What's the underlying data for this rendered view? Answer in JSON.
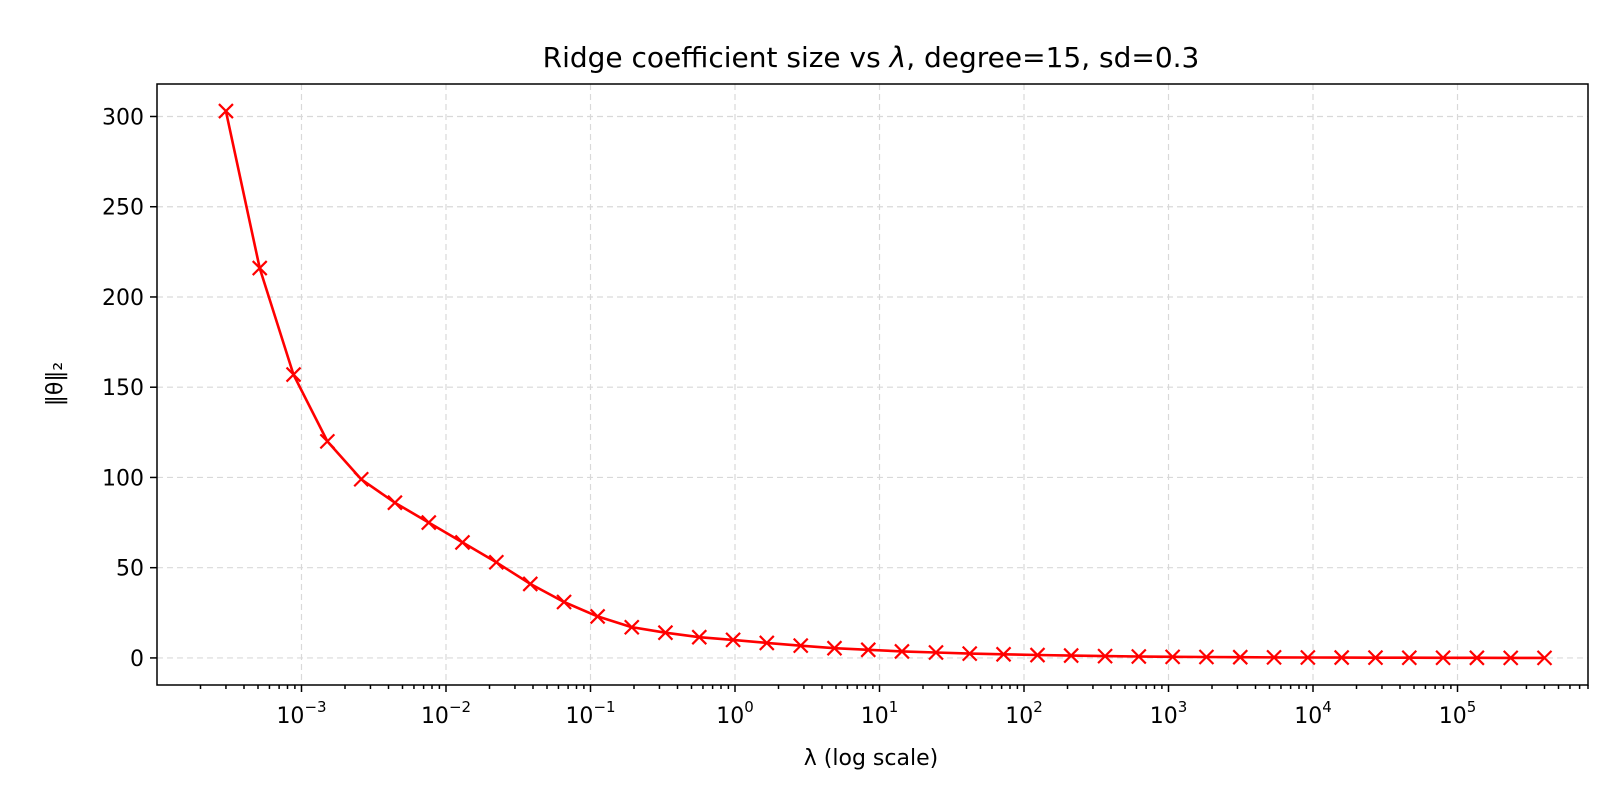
{
  "chart_data": {
    "type": "line",
    "title": "Ridge coefficient size vs λ, degree=15, sd=0.3",
    "title_parts": [
      "Ridge coefficient size vs ",
      "λ",
      ", degree=15, sd=0.3"
    ],
    "xlabel": "λ (log scale)",
    "ylabel": "‖θ‖₂",
    "xscale": "log",
    "xlim": [
      0.0001,
      800000
    ],
    "ylim": [
      -15,
      318
    ],
    "grid": true,
    "line_color": "#ff0000",
    "marker": "x",
    "x_ticks": [
      {
        "value": 0.001,
        "base": "10",
        "exp": "−3"
      },
      {
        "value": 0.01,
        "base": "10",
        "exp": "−2"
      },
      {
        "value": 0.1,
        "base": "10",
        "exp": "−1"
      },
      {
        "value": 1,
        "base": "10",
        "exp": "0"
      },
      {
        "value": 10,
        "base": "10",
        "exp": "1"
      },
      {
        "value": 100,
        "base": "10",
        "exp": "2"
      },
      {
        "value": 1000,
        "base": "10",
        "exp": "3"
      },
      {
        "value": 10000,
        "base": "10",
        "exp": "4"
      },
      {
        "value": 100000,
        "base": "10",
        "exp": "5"
      }
    ],
    "y_ticks": [
      {
        "value": 0,
        "label": "0"
      },
      {
        "value": 50,
        "label": "50"
      },
      {
        "value": 100,
        "label": "100"
      },
      {
        "value": 150,
        "label": "150"
      },
      {
        "value": 200,
        "label": "200"
      },
      {
        "value": 250,
        "label": "250"
      },
      {
        "value": 300,
        "label": "300"
      }
    ],
    "series": [
      {
        "x": [
          0.0003,
          0.000514,
          0.000881,
          0.00151,
          0.00259,
          0.00443,
          0.0076,
          0.013,
          0.0223,
          0.0383,
          0.0656,
          0.112,
          0.193,
          0.33,
          0.566,
          0.97,
          1.66,
          2.85,
          4.88,
          8.36,
          14.3,
          24.6,
          42.1,
          72.2,
          124,
          212,
          364,
          623,
          1068,
          1830,
          3137,
          5376,
          9213,
          15790,
          27060,
          46380,
          79480,
          136200,
          233500,
          400000
        ],
        "y": [
          303,
          216,
          157,
          120,
          99,
          86,
          75,
          64,
          53,
          41,
          31,
          23,
          17,
          14,
          11.5,
          10,
          8.3,
          6.8,
          5.4,
          4.5,
          3.6,
          3,
          2.4,
          2,
          1.6,
          1.3,
          1.0,
          0.8,
          0.6,
          0.5,
          0.4,
          0.3,
          0.25,
          0.2,
          0.15,
          0.1,
          0.08,
          0.05,
          0.03,
          0.02
        ]
      }
    ]
  }
}
